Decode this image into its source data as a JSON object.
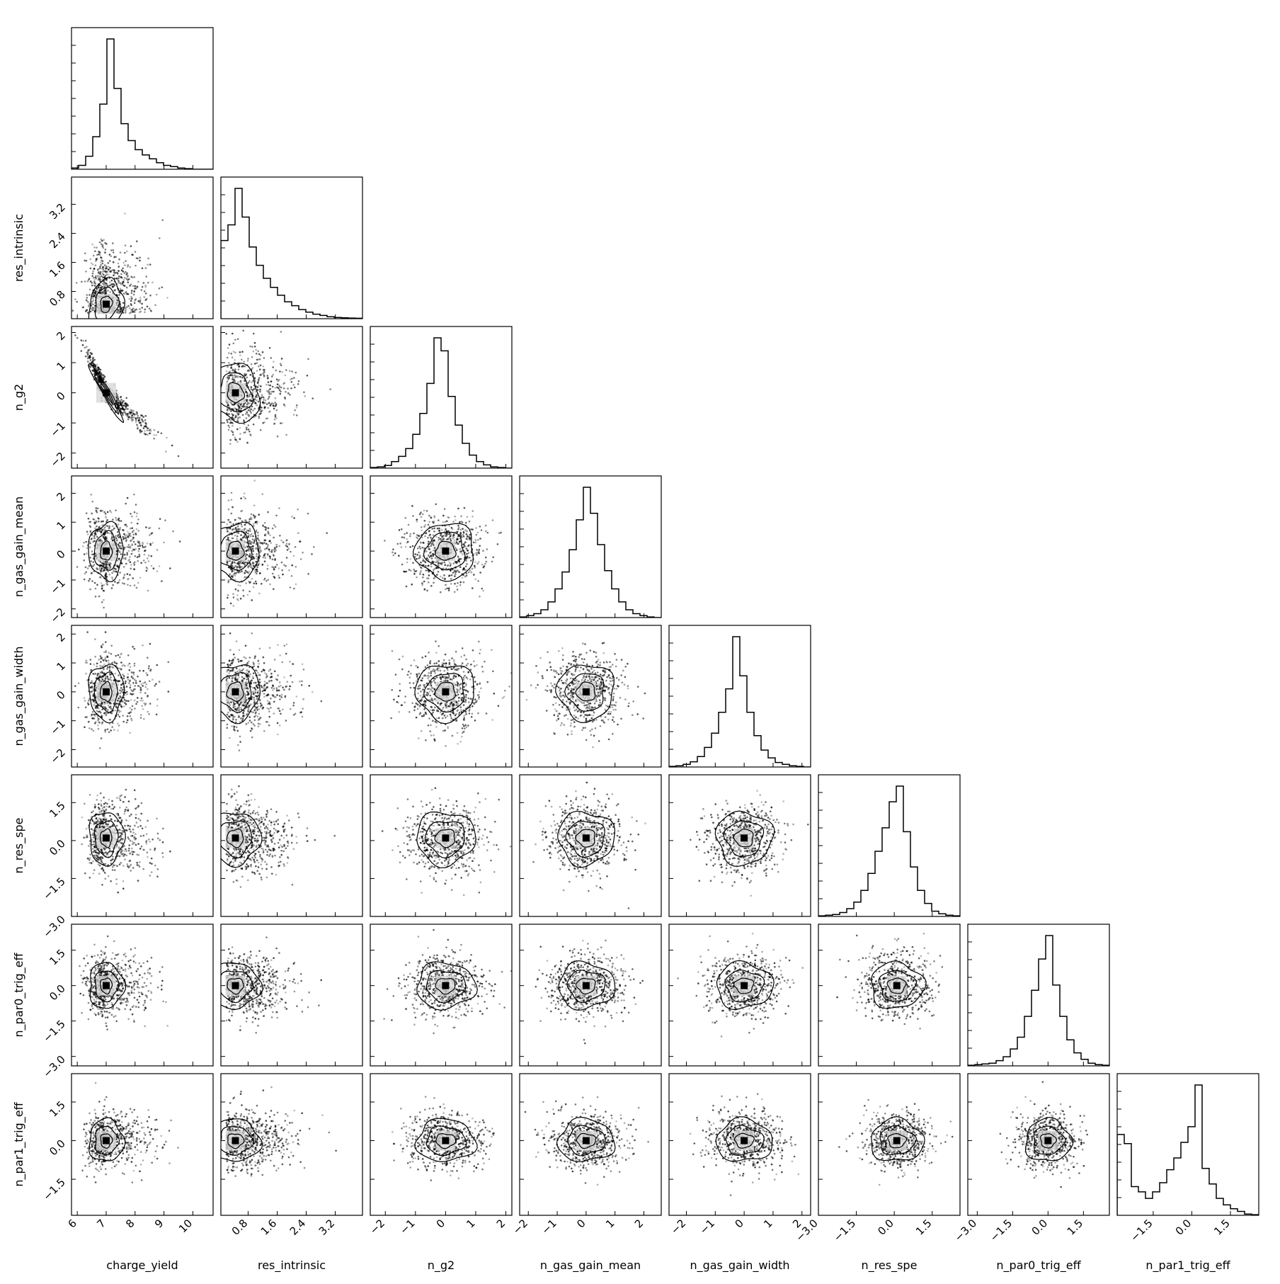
{
  "chart_data": {
    "type": "corner",
    "variables": [
      {
        "name": "charge_yield",
        "range": [
          5.8,
          10.7
        ],
        "ticks": [
          "6",
          "7",
          "8",
          "9",
          "10"
        ],
        "tick_values": [
          6,
          7,
          8,
          9,
          10
        ],
        "center": 7.0,
        "spread": 0.4
      },
      {
        "name": "res_intrinsic",
        "range": [
          0.05,
          3.95
        ],
        "ticks": [
          "0.8",
          "1.6",
          "2.4",
          "3.2"
        ],
        "tick_values": [
          0.8,
          1.6,
          2.4,
          3.2
        ],
        "center": 0.45,
        "spread": 0.45
      },
      {
        "name": "n_g2",
        "range": [
          -2.5,
          2.2
        ],
        "ticks": [
          "−2",
          "−1",
          "0",
          "1",
          "2"
        ],
        "tick_values": [
          -2,
          -1,
          0,
          1,
          2
        ],
        "center": 0.0,
        "spread": 0.65
      },
      {
        "name": "n_gas_gain_mean",
        "range": [
          -2.3,
          2.6
        ],
        "ticks": [
          "−2",
          "−1",
          "0",
          "1",
          "2"
        ],
        "tick_values": [
          -2,
          -1,
          0,
          1,
          2
        ],
        "center": 0.0,
        "spread": 0.65
      },
      {
        "name": "n_gas_gain_width",
        "range": [
          -2.6,
          2.3
        ],
        "ticks": [
          "−2",
          "−1",
          "0",
          "1",
          "2"
        ],
        "tick_values": [
          -2,
          -1,
          0,
          1,
          2
        ],
        "center": 0.0,
        "spread": 0.65
      },
      {
        "name": "n_res_spe",
        "range": [
          -3.0,
          2.6
        ],
        "ticks": [
          "−3.0",
          "−1.5",
          "0.0",
          "1.5"
        ],
        "tick_values": [
          -3.0,
          -1.5,
          0.0,
          1.5
        ],
        "center": 0.1,
        "spread": 0.7
      },
      {
        "name": "n_par0_trig_eff",
        "range": [
          -3.4,
          2.6
        ],
        "ticks": [
          "−3.0",
          "−1.5",
          "0.0",
          "1.5"
        ],
        "tick_values": [
          -3.0,
          -1.5,
          0.0,
          1.5
        ],
        "center": 0.0,
        "spread": 0.65
      },
      {
        "name": "n_par1_trig_eff",
        "range": [
          -2.9,
          2.6
        ],
        "ticks": [
          "−1.5",
          "0.0",
          "1.5"
        ],
        "tick_values": [
          -1.5,
          0.0,
          1.5
        ],
        "center": 0.0,
        "spread": 0.55
      }
    ],
    "histograms": [
      [
        0.01,
        0.03,
        0.1,
        0.25,
        0.5,
        1.0,
        0.62,
        0.35,
        0.22,
        0.15,
        0.11,
        0.08,
        0.05,
        0.03,
        0.02,
        0.01,
        0.005,
        0.0,
        0.0,
        0.0
      ],
      [
        0.6,
        0.72,
        1.0,
        0.78,
        0.55,
        0.41,
        0.31,
        0.24,
        0.18,
        0.13,
        0.1,
        0.07,
        0.05,
        0.035,
        0.025,
        0.015,
        0.01,
        0.007,
        0.005,
        0.003
      ],
      [
        0.005,
        0.01,
        0.02,
        0.05,
        0.09,
        0.15,
        0.26,
        0.42,
        0.65,
        1.0,
        0.9,
        0.55,
        0.33,
        0.19,
        0.1,
        0.05,
        0.025,
        0.01,
        0.005,
        0.0
      ],
      [
        0.005,
        0.015,
        0.03,
        0.06,
        0.12,
        0.22,
        0.35,
        0.52,
        0.75,
        1.0,
        0.8,
        0.56,
        0.36,
        0.22,
        0.12,
        0.06,
        0.03,
        0.015,
        0.005,
        0.0
      ],
      [
        0.005,
        0.01,
        0.02,
        0.04,
        0.08,
        0.15,
        0.26,
        0.42,
        0.6,
        1.0,
        0.7,
        0.42,
        0.24,
        0.13,
        0.07,
        0.035,
        0.02,
        0.01,
        0.005,
        0.0
      ],
      [
        0.005,
        0.01,
        0.015,
        0.03,
        0.06,
        0.11,
        0.2,
        0.33,
        0.5,
        0.68,
        0.88,
        1.0,
        0.65,
        0.38,
        0.2,
        0.1,
        0.04,
        0.02,
        0.01,
        0.005
      ],
      [
        0.005,
        0.01,
        0.015,
        0.02,
        0.04,
        0.07,
        0.13,
        0.22,
        0.38,
        0.58,
        0.82,
        1.0,
        0.62,
        0.38,
        0.2,
        0.1,
        0.05,
        0.02,
        0.01,
        0.005
      ],
      [
        0.62,
        0.55,
        0.22,
        0.18,
        0.13,
        0.18,
        0.25,
        0.35,
        0.44,
        0.56,
        0.68,
        1.0,
        0.36,
        0.24,
        0.13,
        0.08,
        0.05,
        0.03,
        0.01,
        0.005
      ]
    ],
    "correlations": {
      "2,0": -0.97,
      "1,0": 0.15,
      "2,1": -0.15
    }
  }
}
